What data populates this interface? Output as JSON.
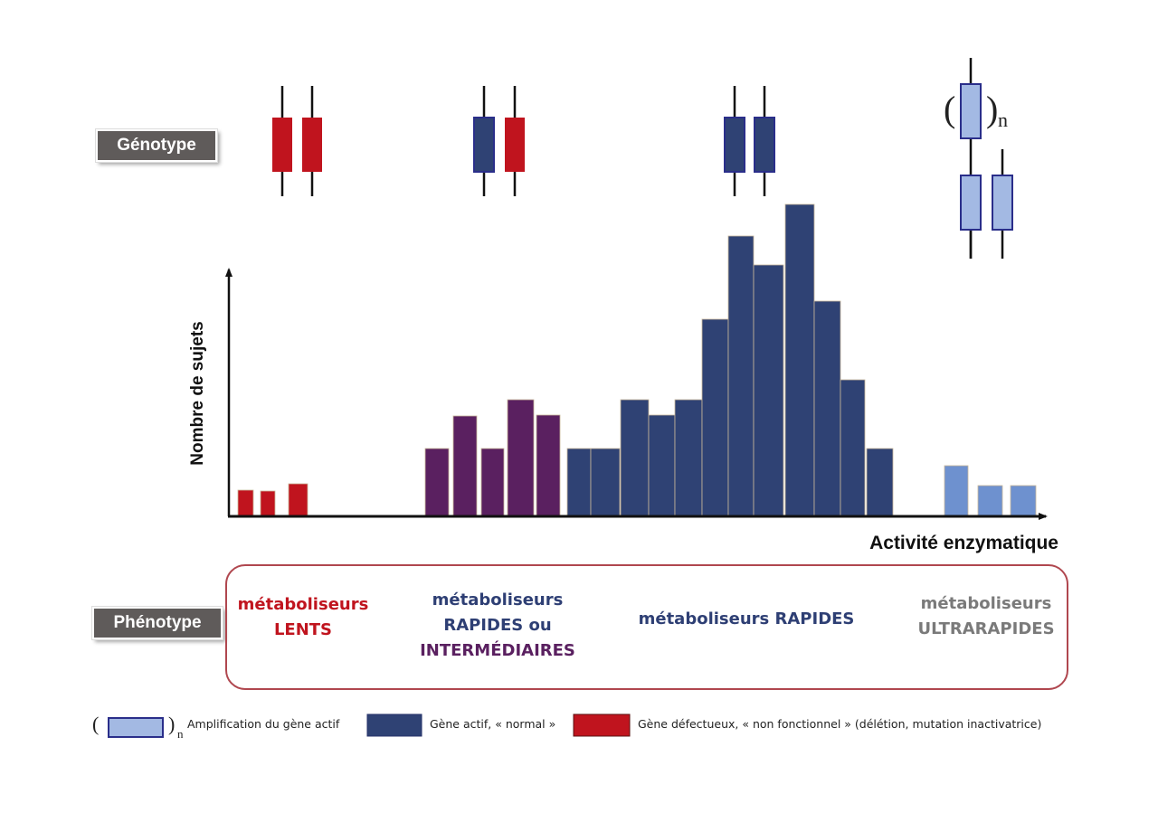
{
  "labels": {
    "genotype": "Génotype",
    "phenotype": "Phénotype",
    "paren_open": "(",
    "paren_close": ")",
    "subscript_n": "n"
  },
  "phenotypes": [
    {
      "lines": [
        "métaboliseurs",
        "LENTS"
      ],
      "color": "#c0141e"
    },
    {
      "lines": [
        "métaboliseurs",
        "RAPIDES ou"
      ],
      "line3": "INTERMÉDIAIRES",
      "color": "#2e3f74",
      "line3_color": "#5a2060"
    },
    {
      "lines": [
        "métaboliseurs RAPIDES"
      ],
      "color": "#2e3f74"
    },
    {
      "lines": [
        "métaboliseurs",
        "ULTRARAPIDES"
      ],
      "color": "#7a7a7a"
    }
  ],
  "genotypes": [
    {
      "alleles": [
        "defective",
        "defective"
      ]
    },
    {
      "alleles": [
        "active",
        "defective"
      ]
    },
    {
      "alleles": [
        "active",
        "active"
      ]
    },
    {
      "alleles": [
        "amplified",
        "amplified",
        "amplified"
      ],
      "amplification_label": "n"
    }
  ],
  "legend": [
    {
      "key": "amplified",
      "text": "Amplification du gène actif",
      "color": "#a3b9e3"
    },
    {
      "key": "active",
      "text": "Gène actif, « normal »",
      "color": "#2f4274"
    },
    {
      "key": "defective",
      "text": "Gène défectueux, « non fonctionnel » (délétion, mutation inactivatrice)",
      "color": "#c0141e"
    }
  ],
  "colors": {
    "defective": "#c0141e",
    "intermediate": "#5a2060",
    "active": "#2f4274",
    "amplified": "#6e91cf",
    "amplified_gene": "#a3b9e3",
    "gene_border": "#2a2e8a",
    "phenotype_border": "#b0474f"
  },
  "chart_data": {
    "type": "bar",
    "title": "",
    "xlabel": "Activité enzymatique",
    "ylabel": "Nombre de sujets",
    "grid": false,
    "note": "Unlabeled histogram; values are relative bar heights (arbitrary units, max ≈ 344).",
    "ylim": [
      0,
      370
    ],
    "series": [
      {
        "name": "métaboliseurs LENTS",
        "group": "defective",
        "values": [
          28,
          27,
          35
        ]
      },
      {
        "name": "métaboliseurs RAPIDES ou INTERMÉDIAIRES",
        "group": "intermediate",
        "values": [
          74,
          110,
          74,
          128,
          111
        ]
      },
      {
        "name": "métaboliseurs RAPIDES",
        "group": "active",
        "values": [
          74,
          74,
          128,
          111,
          128,
          217,
          309,
          277,
          344,
          237,
          150,
          74
        ]
      },
      {
        "name": "métaboliseurs ULTRARAPIDES",
        "group": "amplified",
        "values": [
          55,
          33,
          33
        ]
      }
    ]
  }
}
